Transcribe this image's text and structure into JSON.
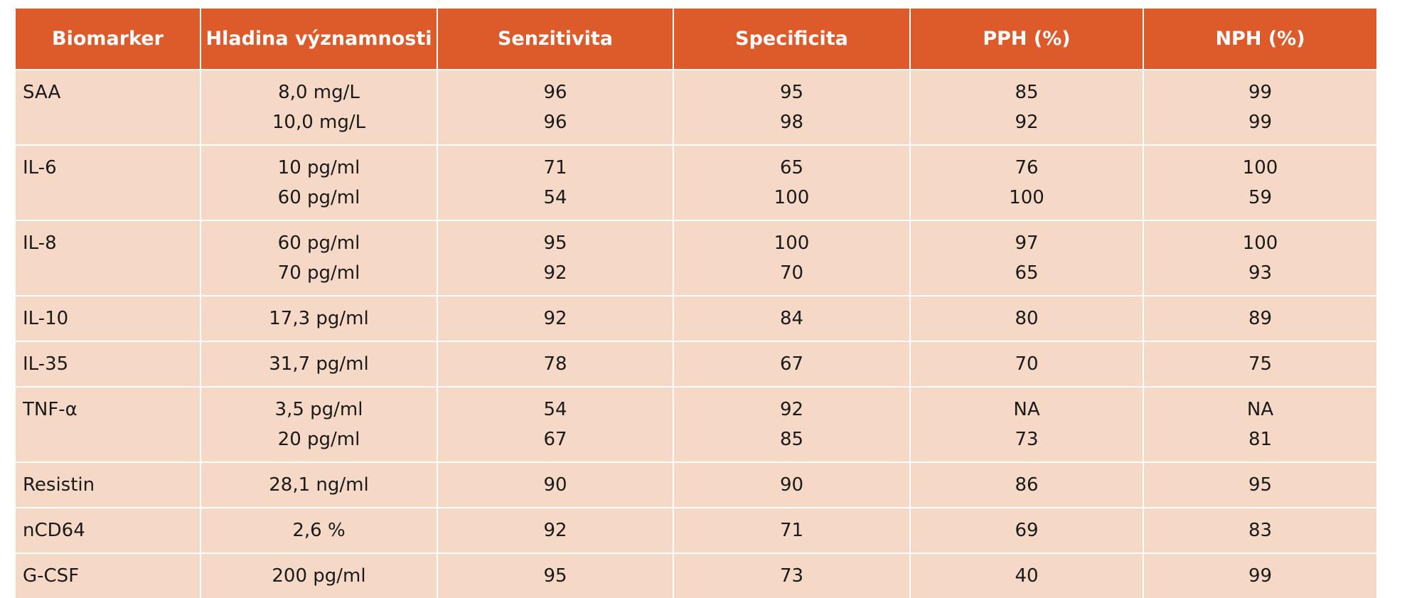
{
  "header": {
    "biomarker": "Biomarker",
    "level": "Hladina významnosti",
    "sensitivity": "Senzitivita",
    "specificity": "Specificita",
    "pph": "PPH (%)",
    "nph": "NPH (%)"
  },
  "rows": [
    {
      "biomarker": "SAA",
      "levels": [
        "8,0 mg/L",
        "10,0 mg/L"
      ],
      "sensitivity": [
        "96",
        "96"
      ],
      "specificity": [
        "95",
        "98"
      ],
      "pph": [
        "85",
        "92"
      ],
      "nph": [
        "99",
        "99"
      ]
    },
    {
      "biomarker": "IL-6",
      "levels": [
        "10 pg/ml",
        "60 pg/ml"
      ],
      "sensitivity": [
        "71",
        "54"
      ],
      "specificity": [
        "65",
        "100"
      ],
      "pph": [
        "76",
        "100"
      ],
      "nph": [
        "100",
        "59"
      ]
    },
    {
      "biomarker": "IL-8",
      "levels": [
        "60 pg/ml",
        "70 pg/ml"
      ],
      "sensitivity": [
        "95",
        "92"
      ],
      "specificity": [
        "100",
        "70"
      ],
      "pph": [
        "97",
        "65"
      ],
      "nph": [
        "100",
        "93"
      ]
    },
    {
      "biomarker": "IL-10",
      "levels": [
        "17,3 pg/ml"
      ],
      "sensitivity": [
        "92"
      ],
      "specificity": [
        "84"
      ],
      "pph": [
        "80"
      ],
      "nph": [
        "89"
      ]
    },
    {
      "biomarker": "IL-35",
      "levels": [
        "31,7 pg/ml"
      ],
      "sensitivity": [
        "78"
      ],
      "specificity": [
        "67"
      ],
      "pph": [
        "70"
      ],
      "nph": [
        "75"
      ]
    },
    {
      "biomarker": "TNF-α",
      "levels": [
        "3,5 pg/ml",
        "20 pg/ml"
      ],
      "sensitivity": [
        "54",
        "67"
      ],
      "specificity": [
        "92",
        "85"
      ],
      "pph": [
        "NA",
        "73"
      ],
      "nph": [
        "NA",
        "81"
      ]
    },
    {
      "biomarker": "Resistin",
      "levels": [
        "28,1 ng/ml"
      ],
      "sensitivity": [
        "90"
      ],
      "specificity": [
        "90"
      ],
      "pph": [
        "86"
      ],
      "nph": [
        "95"
      ]
    },
    {
      "biomarker": "nCD64",
      "levels": [
        "2,6 %"
      ],
      "sensitivity": [
        "92"
      ],
      "specificity": [
        "71"
      ],
      "pph": [
        "69"
      ],
      "nph": [
        "83"
      ]
    },
    {
      "biomarker": "G-CSF",
      "levels": [
        "200 pg/ml"
      ],
      "sensitivity": [
        "95"
      ],
      "specificity": [
        "73"
      ],
      "pph": [
        "40"
      ],
      "nph": [
        "99"
      ]
    }
  ],
  "colors": {
    "header_bg": "#dd5a2a",
    "row_bg": "#f5d9c6",
    "header_text": "#ffffff"
  }
}
